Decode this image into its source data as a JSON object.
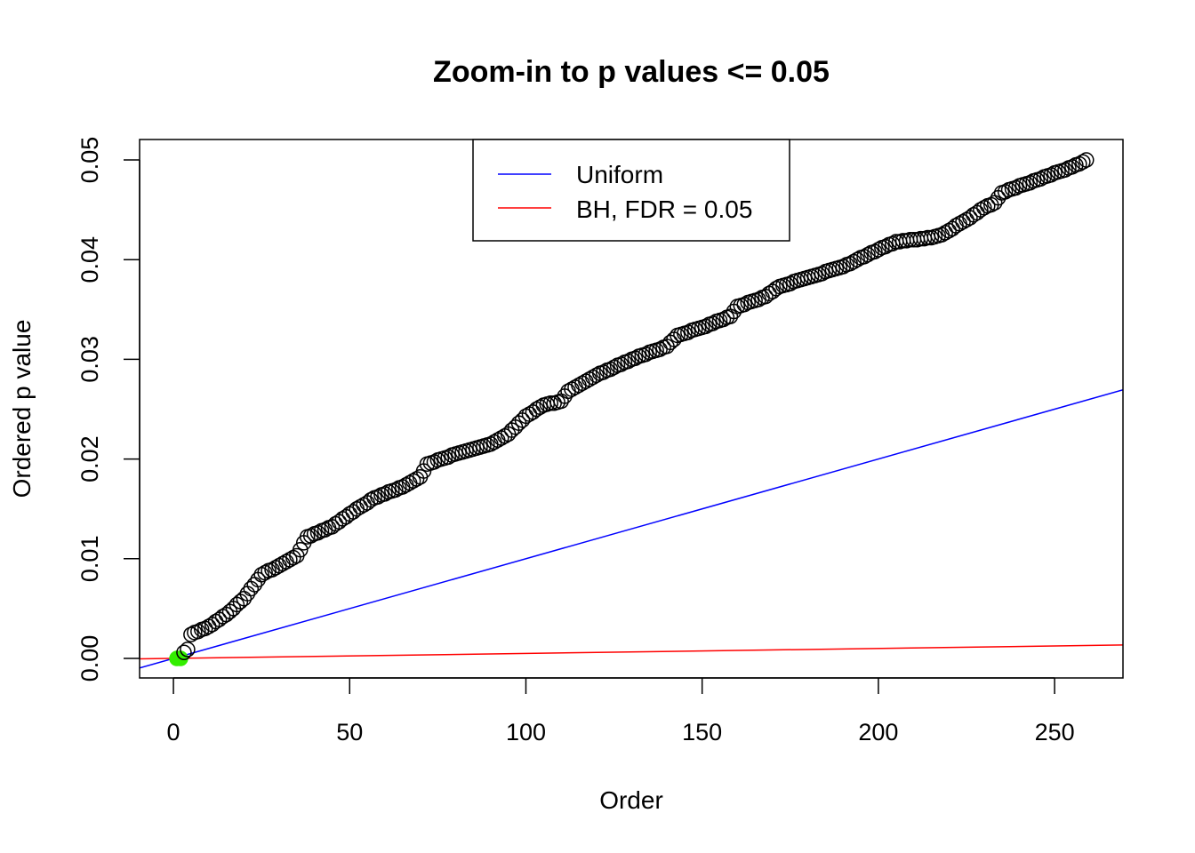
{
  "chart_data": {
    "type": "scatter",
    "title": "Zoom-in to p values <= 0.05",
    "xlabel": "Order",
    "ylabel": "Ordered p value",
    "xlim": [
      -9.6,
      269.4
    ],
    "ylim": [
      -0.00196,
      0.05205
    ],
    "x_ticks": [
      "0",
      "50",
      "100",
      "150",
      "200",
      "250"
    ],
    "x_tick_values": [
      0,
      50,
      100,
      150,
      200,
      250
    ],
    "y_ticks": [
      "0.00",
      "0.01",
      "0.02",
      "0.03",
      "0.04",
      "0.05"
    ],
    "y_tick_values": [
      0,
      0.01,
      0.02,
      0.03,
      0.04,
      0.05
    ],
    "grid": false,
    "point_color": "#000000",
    "highlight_color": "#33ee00",
    "highlighted_orders": [
      1,
      2
    ],
    "x_start": 1,
    "values": [
      0.0,
      0.0,
      0.0006,
      0.0009,
      0.0024,
      0.0026,
      0.0027,
      0.0029,
      0.003,
      0.0032,
      0.0034,
      0.0037,
      0.0039,
      0.0042,
      0.0044,
      0.0047,
      0.005,
      0.0054,
      0.0057,
      0.006,
      0.0065,
      0.007,
      0.0074,
      0.0079,
      0.0084,
      0.0086,
      0.0088,
      0.0089,
      0.0091,
      0.0093,
      0.0095,
      0.0097,
      0.0099,
      0.0101,
      0.0103,
      0.0109,
      0.0116,
      0.0122,
      0.0123,
      0.0125,
      0.0126,
      0.0128,
      0.0129,
      0.0131,
      0.0132,
      0.0135,
      0.0137,
      0.014,
      0.0142,
      0.0145,
      0.0147,
      0.015,
      0.0152,
      0.0154,
      0.0156,
      0.0159,
      0.0161,
      0.0162,
      0.0164,
      0.0165,
      0.0167,
      0.0168,
      0.0169,
      0.0171,
      0.0172,
      0.0174,
      0.0176,
      0.0178,
      0.018,
      0.0182,
      0.0188,
      0.0195,
      0.0196,
      0.0197,
      0.0199,
      0.02,
      0.0201,
      0.0202,
      0.0204,
      0.0205,
      0.0206,
      0.0207,
      0.0208,
      0.0209,
      0.021,
      0.0211,
      0.0212,
      0.0213,
      0.0214,
      0.0215,
      0.0217,
      0.0219,
      0.0221,
      0.0223,
      0.0225,
      0.0229,
      0.0232,
      0.0236,
      0.0239,
      0.0243,
      0.0245,
      0.0247,
      0.025,
      0.0252,
      0.0254,
      0.0255,
      0.0256,
      0.0256,
      0.0257,
      0.0258,
      0.0263,
      0.0268,
      0.027,
      0.0272,
      0.0274,
      0.0276,
      0.0278,
      0.028,
      0.0282,
      0.0284,
      0.0286,
      0.0287,
      0.0289,
      0.029,
      0.0292,
      0.0294,
      0.0295,
      0.0297,
      0.0298,
      0.03,
      0.0301,
      0.0303,
      0.0304,
      0.0305,
      0.0307,
      0.0308,
      0.0309,
      0.031,
      0.0312,
      0.0313,
      0.0317,
      0.032,
      0.0324,
      0.0325,
      0.0326,
      0.0327,
      0.0329,
      0.033,
      0.0331,
      0.0332,
      0.0333,
      0.0335,
      0.0336,
      0.0338,
      0.0339,
      0.034,
      0.0342,
      0.0343,
      0.0348,
      0.0353,
      0.0354,
      0.0355,
      0.0357,
      0.0358,
      0.0359,
      0.036,
      0.0362,
      0.0363,
      0.0366,
      0.0368,
      0.0371,
      0.0373,
      0.0374,
      0.0375,
      0.0376,
      0.0378,
      0.0379,
      0.038,
      0.0381,
      0.0382,
      0.0383,
      0.0384,
      0.0385,
      0.0386,
      0.0388,
      0.0389,
      0.039,
      0.0391,
      0.0392,
      0.0393,
      0.0395,
      0.0396,
      0.0398,
      0.04,
      0.0402,
      0.0403,
      0.0405,
      0.0407,
      0.0408,
      0.041,
      0.0412,
      0.0413,
      0.0415,
      0.0416,
      0.0418,
      0.0418,
      0.0419,
      0.0419,
      0.042,
      0.042,
      0.042,
      0.0421,
      0.0421,
      0.0422,
      0.0422,
      0.0423,
      0.0424,
      0.0425,
      0.0427,
      0.0429,
      0.0431,
      0.0434,
      0.0436,
      0.0438,
      0.044,
      0.0442,
      0.0445,
      0.0447,
      0.045,
      0.0452,
      0.0454,
      0.0455,
      0.0457,
      0.0462,
      0.0467,
      0.0468,
      0.047,
      0.0471,
      0.0472,
      0.0474,
      0.0475,
      0.0476,
      0.0477,
      0.0479,
      0.048,
      0.0481,
      0.0483,
      0.0484,
      0.0485,
      0.0487,
      0.0488,
      0.0489,
      0.049,
      0.0492,
      0.0493,
      0.0495,
      0.0496,
      0.0498,
      0.05
    ],
    "lines": [
      {
        "name": "Uniform",
        "color": "#0000ff",
        "intercept": 0,
        "slope": 0.0001
      },
      {
        "name": "BH, FDR = 0.05",
        "color": "#ff0000",
        "intercept": 0,
        "slope": 5e-06
      }
    ],
    "legend_position": "top"
  }
}
